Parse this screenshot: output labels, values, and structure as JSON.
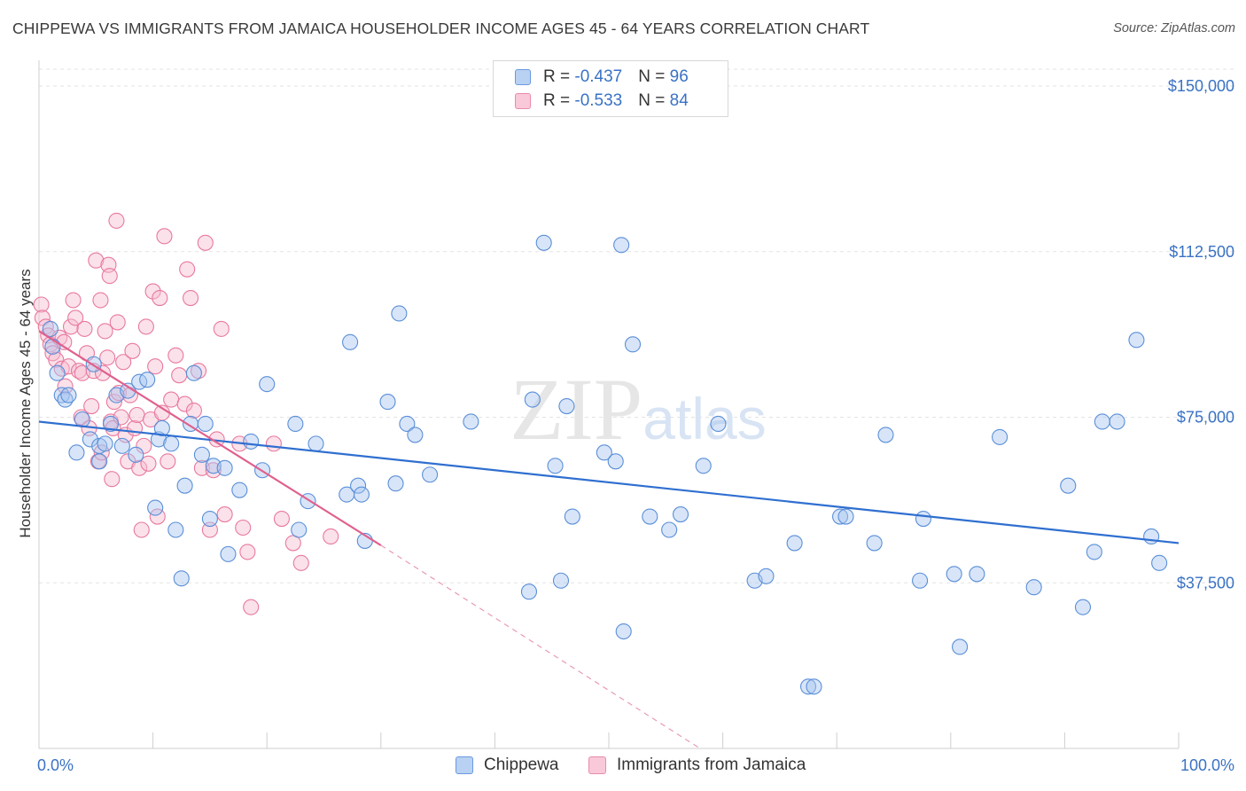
{
  "chart_data": {
    "type": "scatter",
    "title": "CHIPPEWA VS IMMIGRANTS FROM JAMAICA HOUSEHOLDER INCOME AGES 45 - 64 YEARS CORRELATION CHART",
    "source": "Source: ZipAtlas.com",
    "watermark": "ZIPatlas",
    "xlabel": "",
    "ylabel": "Householder Income Ages 45 - 64 years",
    "xlim": [
      0,
      100
    ],
    "ylim": [
      0,
      150000
    ],
    "x_tick_labels": {
      "left": "0.0%",
      "right": "100.0%"
    },
    "y_ticks": [
      {
        "value": 150000,
        "label": "$150,000"
      },
      {
        "value": 112500,
        "label": "$112,500"
      },
      {
        "value": 75000,
        "label": "$75,000"
      },
      {
        "value": 37500,
        "label": "$37,500"
      }
    ],
    "legend": {
      "rows": [
        {
          "r_label": "R = ",
          "r_value": "-0.437",
          "n_label": "N = ",
          "n_value": "96"
        },
        {
          "r_label": "R = ",
          "r_value": "-0.533",
          "n_label": "N = ",
          "n_value": "84"
        }
      ]
    },
    "series": [
      {
        "name": "Chippewa",
        "color": "#5a8fd8",
        "fill": "#a9c6ef",
        "trend": {
          "x0": 0,
          "y0": 74000,
          "x1": 100,
          "y1": 46500
        },
        "points": [
          [
            1.0,
            95000
          ],
          [
            1.2,
            91000
          ],
          [
            1.6,
            85000
          ],
          [
            2.0,
            80000
          ],
          [
            2.3,
            79000
          ],
          [
            2.6,
            80000
          ],
          [
            3.3,
            67000
          ],
          [
            3.8,
            74500
          ],
          [
            4.5,
            70000
          ],
          [
            4.8,
            87000
          ],
          [
            5.3,
            65000
          ],
          [
            5.3,
            68500
          ],
          [
            5.8,
            69000
          ],
          [
            6.3,
            73500
          ],
          [
            6.8,
            80000
          ],
          [
            7.3,
            68500
          ],
          [
            7.8,
            81000
          ],
          [
            8.5,
            66500
          ],
          [
            8.8,
            83000
          ],
          [
            9.5,
            83500
          ],
          [
            10.2,
            54500
          ],
          [
            10.5,
            70000
          ],
          [
            10.8,
            72500
          ],
          [
            11.6,
            69000
          ],
          [
            12.0,
            49500
          ],
          [
            12.5,
            38500
          ],
          [
            12.8,
            59500
          ],
          [
            13.3,
            73500
          ],
          [
            13.6,
            85000
          ],
          [
            14.3,
            66500
          ],
          [
            14.6,
            73500
          ],
          [
            15.0,
            52000
          ],
          [
            15.3,
            64000
          ],
          [
            16.3,
            63500
          ],
          [
            16.6,
            44000
          ],
          [
            17.6,
            58500
          ],
          [
            18.6,
            69500
          ],
          [
            19.6,
            63000
          ],
          [
            20.0,
            82500
          ],
          [
            22.5,
            73500
          ],
          [
            22.8,
            49500
          ],
          [
            23.6,
            56000
          ],
          [
            24.3,
            69000
          ],
          [
            27.0,
            57500
          ],
          [
            27.3,
            92000
          ],
          [
            28.0,
            59500
          ],
          [
            28.3,
            57500
          ],
          [
            28.6,
            47000
          ],
          [
            30.6,
            78500
          ],
          [
            31.3,
            60000
          ],
          [
            31.6,
            98500
          ],
          [
            32.3,
            73500
          ],
          [
            33.0,
            71000
          ],
          [
            34.3,
            62000
          ],
          [
            37.9,
            74000
          ],
          [
            43.0,
            35500
          ],
          [
            43.3,
            79000
          ],
          [
            44.3,
            114500
          ],
          [
            45.3,
            64000
          ],
          [
            45.8,
            38000
          ],
          [
            46.3,
            77500
          ],
          [
            46.8,
            52500
          ],
          [
            49.6,
            67000
          ],
          [
            50.6,
            65000
          ],
          [
            51.1,
            114000
          ],
          [
            51.3,
            26500
          ],
          [
            52.1,
            91500
          ],
          [
            53.6,
            52500
          ],
          [
            55.3,
            49500
          ],
          [
            56.3,
            53000
          ],
          [
            58.3,
            64000
          ],
          [
            59.6,
            73500
          ],
          [
            62.8,
            38000
          ],
          [
            63.8,
            39000
          ],
          [
            66.3,
            46500
          ],
          [
            67.5,
            14000
          ],
          [
            68.0,
            14000
          ],
          [
            70.3,
            52500
          ],
          [
            70.8,
            52500
          ],
          [
            73.3,
            46500
          ],
          [
            74.3,
            71000
          ],
          [
            77.3,
            38000
          ],
          [
            77.6,
            52000
          ],
          [
            80.3,
            39500
          ],
          [
            80.8,
            23000
          ],
          [
            82.3,
            39500
          ],
          [
            84.3,
            70500
          ],
          [
            87.3,
            36500
          ],
          [
            90.3,
            59500
          ],
          [
            91.6,
            32000
          ],
          [
            92.6,
            44500
          ],
          [
            93.3,
            74000
          ],
          [
            94.6,
            74000
          ],
          [
            96.3,
            92500
          ],
          [
            97.6,
            48000
          ],
          [
            98.3,
            42000
          ]
        ]
      },
      {
        "name": "Immigrants from Jamaica",
        "color": "#e8799e",
        "fill": "#f7bcd0",
        "trend": {
          "x0": 0,
          "y0": 94500,
          "x1": 30,
          "y1": 46000
        },
        "trend_dashed": {
          "x0": 30,
          "y0": 46000,
          "x1": 58,
          "y1": 0
        },
        "points": [
          [
            0.2,
            100500
          ],
          [
            0.3,
            97500
          ],
          [
            0.6,
            95500
          ],
          [
            0.8,
            93500
          ],
          [
            1.0,
            91500
          ],
          [
            1.2,
            89500
          ],
          [
            1.5,
            88000
          ],
          [
            1.8,
            93000
          ],
          [
            2.0,
            86000
          ],
          [
            2.2,
            92000
          ],
          [
            2.3,
            82000
          ],
          [
            2.6,
            86500
          ],
          [
            2.8,
            95500
          ],
          [
            3.0,
            101500
          ],
          [
            3.2,
            97500
          ],
          [
            3.5,
            85500
          ],
          [
            3.7,
            75000
          ],
          [
            3.8,
            85000
          ],
          [
            4.0,
            95000
          ],
          [
            4.2,
            89500
          ],
          [
            4.4,
            72500
          ],
          [
            4.6,
            77500
          ],
          [
            4.8,
            85500
          ],
          [
            5.0,
            110500
          ],
          [
            5.2,
            65000
          ],
          [
            5.4,
            101500
          ],
          [
            5.5,
            67000
          ],
          [
            5.6,
            85000
          ],
          [
            5.8,
            94500
          ],
          [
            6.0,
            88500
          ],
          [
            6.1,
            109500
          ],
          [
            6.2,
            107000
          ],
          [
            6.3,
            74000
          ],
          [
            6.4,
            61000
          ],
          [
            6.5,
            72500
          ],
          [
            6.6,
            78500
          ],
          [
            6.8,
            119500
          ],
          [
            6.9,
            96500
          ],
          [
            7.0,
            80500
          ],
          [
            7.2,
            75000
          ],
          [
            7.4,
            87500
          ],
          [
            7.6,
            71000
          ],
          [
            7.8,
            65000
          ],
          [
            8.0,
            80000
          ],
          [
            8.2,
            90000
          ],
          [
            8.4,
            72500
          ],
          [
            8.6,
            75500
          ],
          [
            8.8,
            63500
          ],
          [
            9.0,
            49500
          ],
          [
            9.2,
            68500
          ],
          [
            9.4,
            95500
          ],
          [
            9.6,
            64500
          ],
          [
            9.8,
            74500
          ],
          [
            10.0,
            103500
          ],
          [
            10.2,
            86500
          ],
          [
            10.4,
            52500
          ],
          [
            10.6,
            102000
          ],
          [
            10.8,
            76000
          ],
          [
            11.0,
            116000
          ],
          [
            11.3,
            65000
          ],
          [
            11.6,
            79000
          ],
          [
            12.0,
            89000
          ],
          [
            12.3,
            84500
          ],
          [
            12.8,
            78000
          ],
          [
            13.0,
            108500
          ],
          [
            13.3,
            102000
          ],
          [
            13.6,
            76500
          ],
          [
            14.0,
            85500
          ],
          [
            14.3,
            63500
          ],
          [
            14.6,
            114500
          ],
          [
            15.0,
            49500
          ],
          [
            15.3,
            63000
          ],
          [
            15.6,
            70000
          ],
          [
            16.0,
            95000
          ],
          [
            16.3,
            53000
          ],
          [
            17.6,
            69000
          ],
          [
            17.9,
            50000
          ],
          [
            18.3,
            44500
          ],
          [
            18.6,
            32000
          ],
          [
            20.6,
            69000
          ],
          [
            21.3,
            52000
          ],
          [
            22.3,
            46500
          ],
          [
            23.0,
            42000
          ],
          [
            25.6,
            48000
          ]
        ]
      }
    ]
  }
}
